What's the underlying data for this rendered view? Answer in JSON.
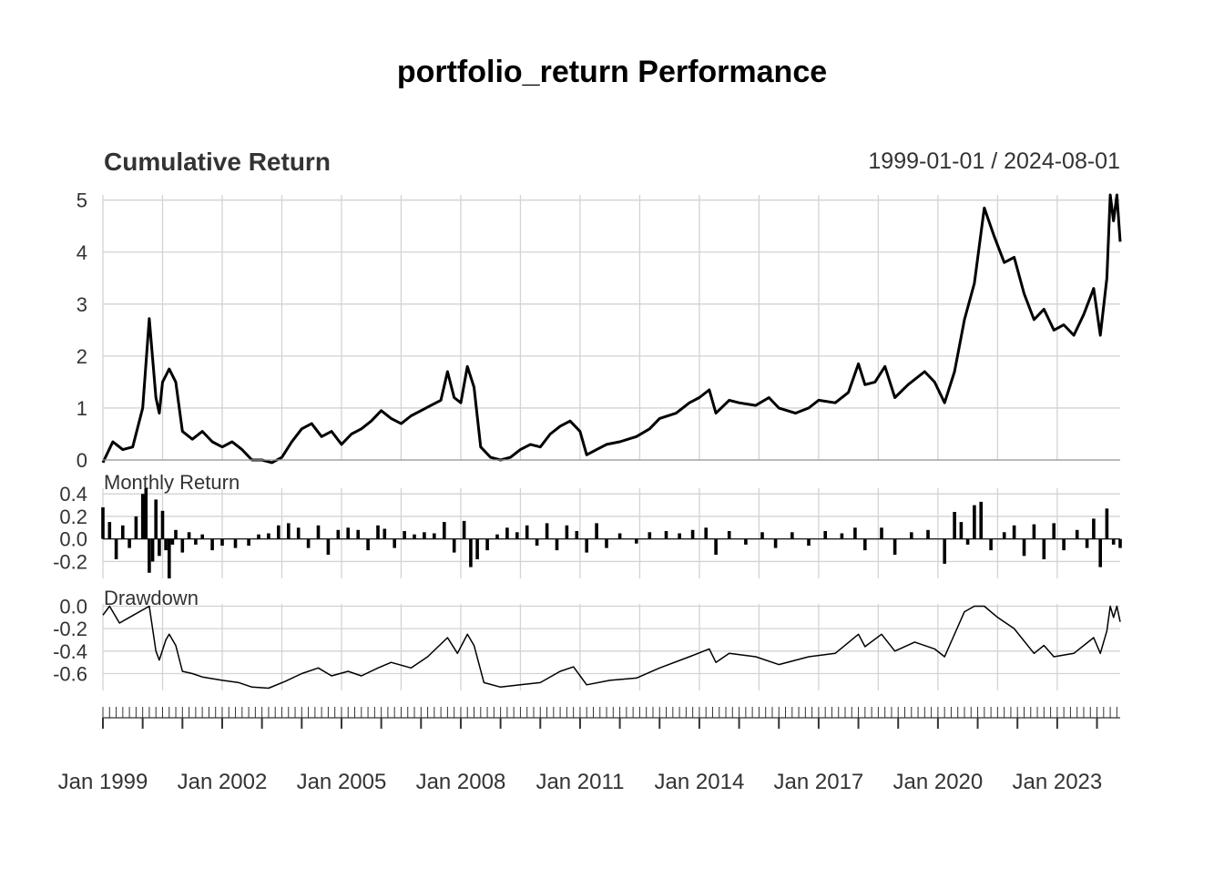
{
  "title": "portfolio_return Performance",
  "date_range": "1999-01-01 / 2024-08-01",
  "x_tick_labels": [
    "Jan 1999",
    "Jan 2002",
    "Jan 2005",
    "Jan 2008",
    "Jan 2011",
    "Jan 2014",
    "Jan 2017",
    "Jan 2020",
    "Jan 2023"
  ],
  "colors": {
    "line": "#000000",
    "grid": "#d3d3d3",
    "text": "#333333",
    "background": "#ffffff"
  },
  "chart_data": [
    {
      "type": "line",
      "title": "Cumulative Return",
      "x_start": "1999-01-01",
      "x_end": "2024-08-01",
      "ylim": [
        0,
        5.1
      ],
      "yticks": [
        0,
        1,
        2,
        3,
        4,
        5
      ],
      "grid": true,
      "points": [
        [
          "1999-01",
          -0.05
        ],
        [
          "1999-04",
          0.35
        ],
        [
          "1999-07",
          0.2
        ],
        [
          "1999-10",
          0.25
        ],
        [
          "2000-01",
          1.0
        ],
        [
          "2000-03",
          2.72
        ],
        [
          "2000-05",
          1.2
        ],
        [
          "2000-06",
          0.9
        ],
        [
          "2000-07",
          1.5
        ],
        [
          "2000-09",
          1.75
        ],
        [
          "2000-11",
          1.5
        ],
        [
          "2001-01",
          0.55
        ],
        [
          "2001-04",
          0.4
        ],
        [
          "2001-07",
          0.55
        ],
        [
          "2001-10",
          0.35
        ],
        [
          "2002-01",
          0.25
        ],
        [
          "2002-04",
          0.35
        ],
        [
          "2002-07",
          0.2
        ],
        [
          "2002-10",
          0.0
        ],
        [
          "2003-01",
          0.0
        ],
        [
          "2003-04",
          -0.05
        ],
        [
          "2003-07",
          0.05
        ],
        [
          "2003-10",
          0.35
        ],
        [
          "2004-01",
          0.6
        ],
        [
          "2004-04",
          0.7
        ],
        [
          "2004-07",
          0.45
        ],
        [
          "2004-10",
          0.55
        ],
        [
          "2005-01",
          0.3
        ],
        [
          "2005-04",
          0.5
        ],
        [
          "2005-07",
          0.6
        ],
        [
          "2005-10",
          0.75
        ],
        [
          "2006-01",
          0.95
        ],
        [
          "2006-04",
          0.8
        ],
        [
          "2006-07",
          0.7
        ],
        [
          "2006-10",
          0.85
        ],
        [
          "2007-01",
          0.95
        ],
        [
          "2007-04",
          1.05
        ],
        [
          "2007-07",
          1.15
        ],
        [
          "2007-09",
          1.7
        ],
        [
          "2007-11",
          1.2
        ],
        [
          "2008-01",
          1.1
        ],
        [
          "2008-03",
          1.8
        ],
        [
          "2008-05",
          1.4
        ],
        [
          "2008-07",
          0.25
        ],
        [
          "2008-10",
          0.05
        ],
        [
          "2009-01",
          0.0
        ],
        [
          "2009-04",
          0.05
        ],
        [
          "2009-07",
          0.2
        ],
        [
          "2009-10",
          0.3
        ],
        [
          "2010-01",
          0.25
        ],
        [
          "2010-04",
          0.5
        ],
        [
          "2010-07",
          0.65
        ],
        [
          "2010-10",
          0.75
        ],
        [
          "2011-01",
          0.55
        ],
        [
          "2011-03",
          0.1
        ],
        [
          "2011-06",
          0.2
        ],
        [
          "2011-09",
          0.3
        ],
        [
          "2012-01",
          0.35
        ],
        [
          "2012-06",
          0.45
        ],
        [
          "2012-10",
          0.6
        ],
        [
          "2013-01",
          0.8
        ],
        [
          "2013-06",
          0.9
        ],
        [
          "2013-10",
          1.1
        ],
        [
          "2014-01",
          1.2
        ],
        [
          "2014-04",
          1.35
        ],
        [
          "2014-06",
          0.9
        ],
        [
          "2014-10",
          1.15
        ],
        [
          "2015-01",
          1.1
        ],
        [
          "2015-06",
          1.05
        ],
        [
          "2015-10",
          1.2
        ],
        [
          "2016-01",
          1.0
        ],
        [
          "2016-06",
          0.9
        ],
        [
          "2016-10",
          1.0
        ],
        [
          "2017-01",
          1.15
        ],
        [
          "2017-06",
          1.1
        ],
        [
          "2017-10",
          1.3
        ],
        [
          "2018-01",
          1.85
        ],
        [
          "2018-03",
          1.45
        ],
        [
          "2018-06",
          1.5
        ],
        [
          "2018-09",
          1.8
        ],
        [
          "2018-12",
          1.2
        ],
        [
          "2019-04",
          1.45
        ],
        [
          "2019-09",
          1.7
        ],
        [
          "2019-12",
          1.5
        ],
        [
          "2020-03",
          1.1
        ],
        [
          "2020-06",
          1.7
        ],
        [
          "2020-09",
          2.7
        ],
        [
          "2020-12",
          3.4
        ],
        [
          "2021-03",
          4.85
        ],
        [
          "2021-06",
          4.3
        ],
        [
          "2021-09",
          3.8
        ],
        [
          "2021-12",
          3.9
        ],
        [
          "2022-03",
          3.2
        ],
        [
          "2022-06",
          2.7
        ],
        [
          "2022-09",
          2.9
        ],
        [
          "2022-12",
          2.5
        ],
        [
          "2023-03",
          2.6
        ],
        [
          "2023-06",
          2.4
        ],
        [
          "2023-09",
          2.8
        ],
        [
          "2023-12",
          3.3
        ],
        [
          "2024-02",
          2.4
        ],
        [
          "2024-04",
          3.5
        ],
        [
          "2024-05",
          5.1
        ],
        [
          "2024-06",
          4.6
        ],
        [
          "2024-07",
          5.1
        ],
        [
          "2024-08",
          4.2
        ]
      ]
    },
    {
      "type": "bar",
      "title": "Monthly Return",
      "x_start": "1999-01-01",
      "x_end": "2024-08-01",
      "ylim": [
        -0.35,
        0.45
      ],
      "yticks": [
        0.4,
        0.2,
        0.0,
        -0.2
      ],
      "ytick_labels": [
        "0.4",
        "0.2",
        "0.0",
        "-0.2"
      ],
      "grid": true,
      "points": [
        [
          "1999-01",
          0.28
        ],
        [
          "1999-03",
          0.15
        ],
        [
          "1999-05",
          -0.18
        ],
        [
          "1999-07",
          0.12
        ],
        [
          "1999-09",
          -0.08
        ],
        [
          "1999-11",
          0.2
        ],
        [
          "2000-01",
          0.4
        ],
        [
          "2000-02",
          0.55
        ],
        [
          "2000-03",
          -0.3
        ],
        [
          "2000-04",
          -0.2
        ],
        [
          "2000-05",
          0.35
        ],
        [
          "2000-06",
          -0.15
        ],
        [
          "2000-07",
          0.25
        ],
        [
          "2000-08",
          -0.1
        ],
        [
          "2000-09",
          -0.4
        ],
        [
          "2000-10",
          -0.05
        ],
        [
          "2000-11",
          0.08
        ],
        [
          "2001-01",
          -0.12
        ],
        [
          "2001-03",
          0.06
        ],
        [
          "2001-05",
          -0.05
        ],
        [
          "2001-07",
          0.04
        ],
        [
          "2001-10",
          -0.1
        ],
        [
          "2002-01",
          -0.06
        ],
        [
          "2002-05",
          -0.08
        ],
        [
          "2002-09",
          -0.06
        ],
        [
          "2002-12",
          0.04
        ],
        [
          "2003-03",
          0.05
        ],
        [
          "2003-06",
          0.12
        ],
        [
          "2003-09",
          0.14
        ],
        [
          "2003-12",
          0.1
        ],
        [
          "2004-03",
          -0.08
        ],
        [
          "2004-06",
          0.12
        ],
        [
          "2004-09",
          -0.14
        ],
        [
          "2004-12",
          0.08
        ],
        [
          "2005-03",
          0.1
        ],
        [
          "2005-06",
          0.08
        ],
        [
          "2005-09",
          -0.1
        ],
        [
          "2005-12",
          0.12
        ],
        [
          "2006-02",
          0.09
        ],
        [
          "2006-05",
          -0.08
        ],
        [
          "2006-08",
          0.07
        ],
        [
          "2006-11",
          0.04
        ],
        [
          "2007-02",
          0.06
        ],
        [
          "2007-05",
          0.05
        ],
        [
          "2007-08",
          0.15
        ],
        [
          "2007-11",
          -0.12
        ],
        [
          "2008-02",
          0.16
        ],
        [
          "2008-04",
          -0.25
        ],
        [
          "2008-06",
          -0.18
        ],
        [
          "2008-09",
          -0.1
        ],
        [
          "2008-12",
          0.04
        ],
        [
          "2009-03",
          0.1
        ],
        [
          "2009-06",
          0.06
        ],
        [
          "2009-09",
          0.12
        ],
        [
          "2009-12",
          -0.06
        ],
        [
          "2010-03",
          0.14
        ],
        [
          "2010-06",
          -0.1
        ],
        [
          "2010-09",
          0.12
        ],
        [
          "2010-12",
          0.07
        ],
        [
          "2011-03",
          -0.12
        ],
        [
          "2011-06",
          0.14
        ],
        [
          "2011-09",
          -0.08
        ],
        [
          "2012-01",
          0.05
        ],
        [
          "2012-06",
          -0.04
        ],
        [
          "2012-10",
          0.06
        ],
        [
          "2013-03",
          0.07
        ],
        [
          "2013-07",
          0.05
        ],
        [
          "2013-11",
          0.08
        ],
        [
          "2014-03",
          0.1
        ],
        [
          "2014-06",
          -0.14
        ],
        [
          "2014-10",
          0.07
        ],
        [
          "2015-03",
          -0.05
        ],
        [
          "2015-08",
          0.06
        ],
        [
          "2015-12",
          -0.08
        ],
        [
          "2016-05",
          0.06
        ],
        [
          "2016-10",
          -0.06
        ],
        [
          "2017-03",
          0.07
        ],
        [
          "2017-08",
          0.05
        ],
        [
          "2017-12",
          0.1
        ],
        [
          "2018-03",
          -0.1
        ],
        [
          "2018-08",
          0.1
        ],
        [
          "2018-12",
          -0.14
        ],
        [
          "2019-05",
          0.06
        ],
        [
          "2019-10",
          0.08
        ],
        [
          "2020-03",
          -0.22
        ],
        [
          "2020-06",
          0.24
        ],
        [
          "2020-08",
          0.15
        ],
        [
          "2020-10",
          -0.05
        ],
        [
          "2020-12",
          0.3
        ],
        [
          "2021-02",
          0.33
        ],
        [
          "2021-05",
          -0.1
        ],
        [
          "2021-09",
          0.06
        ],
        [
          "2021-12",
          0.12
        ],
        [
          "2022-03",
          -0.15
        ],
        [
          "2022-06",
          0.13
        ],
        [
          "2022-09",
          -0.18
        ],
        [
          "2022-12",
          0.14
        ],
        [
          "2023-03",
          -0.1
        ],
        [
          "2023-07",
          0.08
        ],
        [
          "2023-10",
          -0.08
        ],
        [
          "2023-12",
          0.18
        ],
        [
          "2024-02",
          -0.25
        ],
        [
          "2024-04",
          0.27
        ],
        [
          "2024-06",
          -0.05
        ],
        [
          "2024-08",
          -0.08
        ]
      ]
    },
    {
      "type": "line",
      "title": "Drawdown",
      "x_start": "1999-01-01",
      "x_end": "2024-08-01",
      "ylim": [
        -0.75,
        0.02
      ],
      "yticks": [
        0.0,
        -0.2,
        -0.4,
        -0.6
      ],
      "ytick_labels": [
        "0.0",
        "-0.2",
        "-0.4",
        "-0.6"
      ],
      "grid": true,
      "points": [
        [
          "1999-01",
          -0.08
        ],
        [
          "1999-03",
          0.0
        ],
        [
          "1999-06",
          -0.15
        ],
        [
          "1999-09",
          -0.1
        ],
        [
          "2000-03",
          0.0
        ],
        [
          "2000-05",
          -0.4
        ],
        [
          "2000-06",
          -0.48
        ],
        [
          "2000-08",
          -0.3
        ],
        [
          "2000-09",
          -0.25
        ],
        [
          "2000-11",
          -0.35
        ],
        [
          "2001-01",
          -0.58
        ],
        [
          "2001-04",
          -0.6
        ],
        [
          "2001-07",
          -0.63
        ],
        [
          "2002-01",
          -0.66
        ],
        [
          "2002-06",
          -0.68
        ],
        [
          "2002-10",
          -0.72
        ],
        [
          "2003-03",
          -0.73
        ],
        [
          "2003-08",
          -0.67
        ],
        [
          "2004-01",
          -0.6
        ],
        [
          "2004-06",
          -0.55
        ],
        [
          "2004-10",
          -0.62
        ],
        [
          "2005-03",
          -0.58
        ],
        [
          "2005-07",
          -0.62
        ],
        [
          "2005-12",
          -0.55
        ],
        [
          "2006-04",
          -0.5
        ],
        [
          "2006-10",
          -0.55
        ],
        [
          "2007-03",
          -0.45
        ],
        [
          "2007-09",
          -0.28
        ],
        [
          "2007-12",
          -0.42
        ],
        [
          "2008-03",
          -0.25
        ],
        [
          "2008-05",
          -0.35
        ],
        [
          "2008-08",
          -0.68
        ],
        [
          "2009-01",
          -0.72
        ],
        [
          "2009-07",
          -0.7
        ],
        [
          "2010-01",
          -0.68
        ],
        [
          "2010-07",
          -0.58
        ],
        [
          "2010-11",
          -0.54
        ],
        [
          "2011-03",
          -0.7
        ],
        [
          "2011-10",
          -0.66
        ],
        [
          "2012-06",
          -0.64
        ],
        [
          "2013-01",
          -0.55
        ],
        [
          "2013-10",
          -0.45
        ],
        [
          "2014-04",
          -0.38
        ],
        [
          "2014-06",
          -0.5
        ],
        [
          "2014-10",
          -0.42
        ],
        [
          "2015-06",
          -0.45
        ],
        [
          "2016-01",
          -0.52
        ],
        [
          "2016-10",
          -0.45
        ],
        [
          "2017-06",
          -0.42
        ],
        [
          "2018-01",
          -0.25
        ],
        [
          "2018-03",
          -0.36
        ],
        [
          "2018-08",
          -0.25
        ],
        [
          "2018-12",
          -0.4
        ],
        [
          "2019-06",
          -0.32
        ],
        [
          "2019-12",
          -0.38
        ],
        [
          "2020-03",
          -0.45
        ],
        [
          "2020-09",
          -0.05
        ],
        [
          "2020-12",
          0.0
        ],
        [
          "2021-03",
          0.0
        ],
        [
          "2021-07",
          -0.1
        ],
        [
          "2021-12",
          -0.2
        ],
        [
          "2022-06",
          -0.42
        ],
        [
          "2022-09",
          -0.35
        ],
        [
          "2022-12",
          -0.45
        ],
        [
          "2023-06",
          -0.42
        ],
        [
          "2023-12",
          -0.28
        ],
        [
          "2024-02",
          -0.42
        ],
        [
          "2024-04",
          -0.22
        ],
        [
          "2024-05",
          0.0
        ],
        [
          "2024-06",
          -0.1
        ],
        [
          "2024-07",
          0.0
        ],
        [
          "2024-08",
          -0.14
        ]
      ]
    }
  ]
}
